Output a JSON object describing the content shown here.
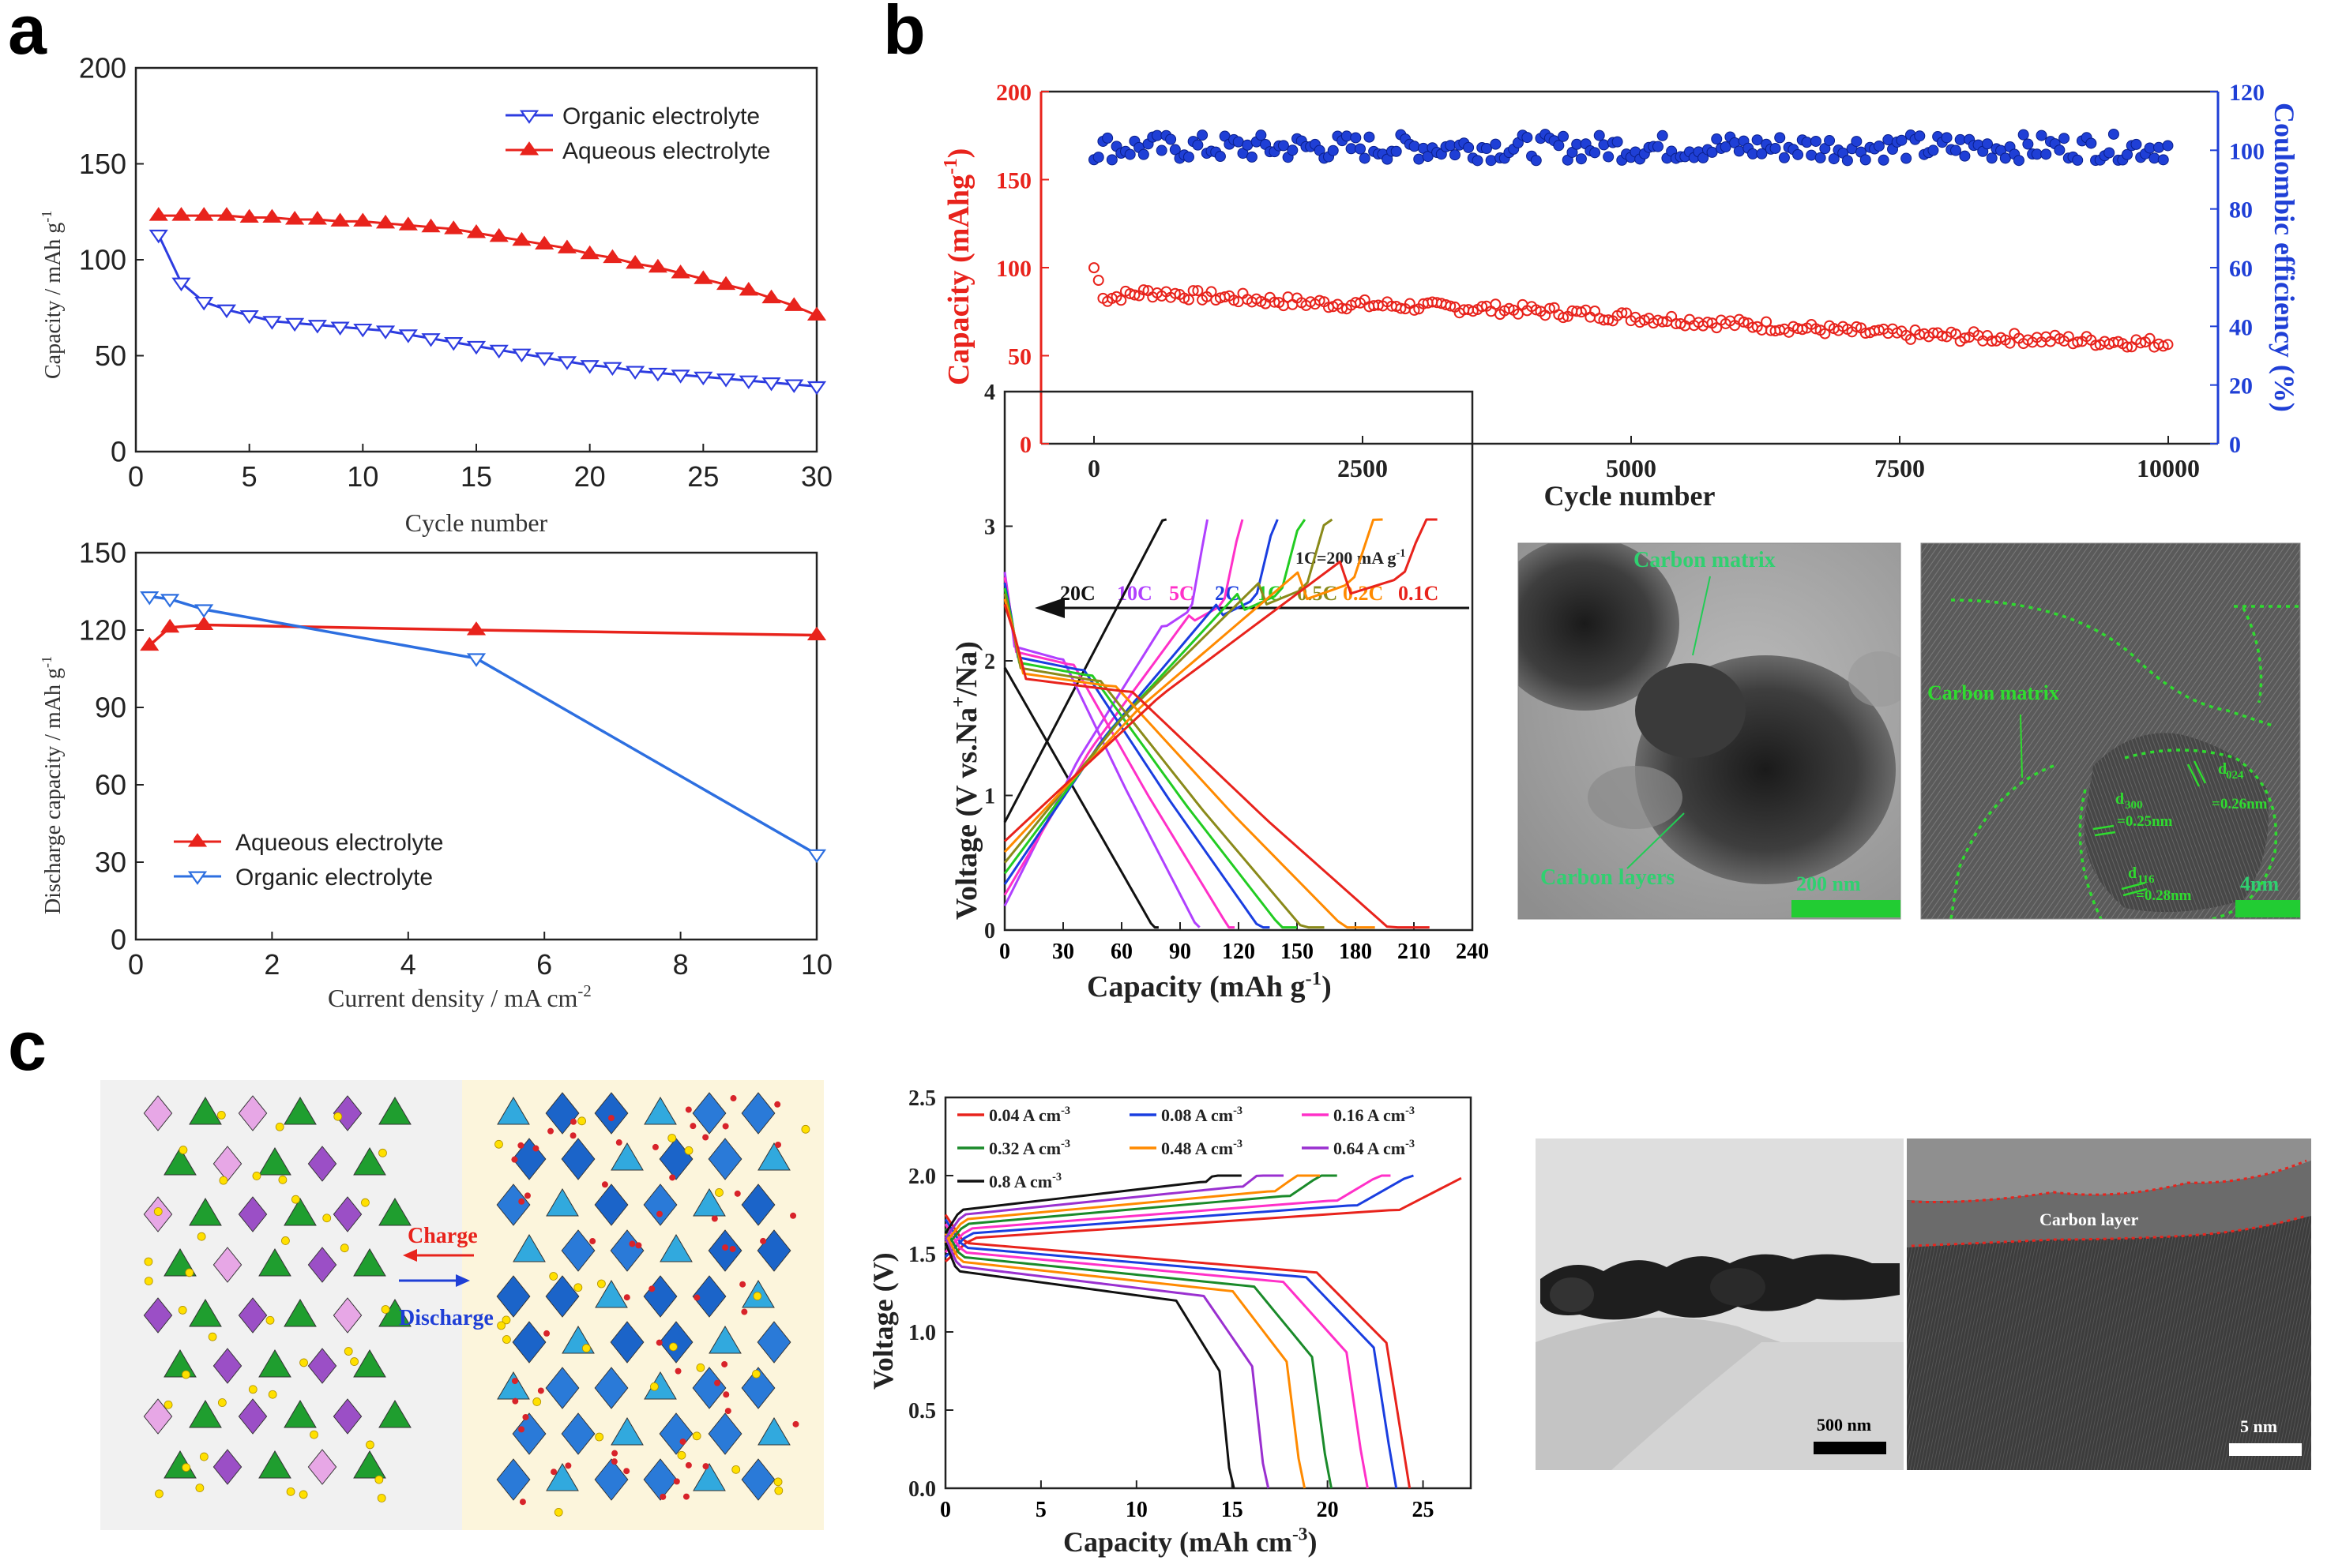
{
  "panel_labels": [
    "a",
    "b",
    "c"
  ],
  "colors": {
    "red": "#e8231c",
    "blue": "#1f3fd6",
    "lightblue": "#2f6fe0",
    "green": "#17c21f",
    "cyan_text": "#20c04a"
  },
  "micrographs": {
    "b1": {
      "labels": [
        "Carbon matrix",
        "Carbon layers"
      ],
      "scalebar": "200 nm"
    },
    "b2": {
      "labels": [
        "Carbon matrix",
        "d",
        "300",
        "=0.25nm",
        "d",
        "024",
        "=0.26nm",
        "d",
        "116",
        "=0.28nm"
      ],
      "scalebar": "4nm"
    },
    "c1": {
      "scalebar": "500 nm"
    },
    "c2": {
      "labels": [
        "Carbon layer"
      ],
      "scalebar": "5 nm"
    }
  },
  "schematic": {
    "charge_label": "Charge",
    "discharge_label": "Discharge"
  },
  "chart_data": [
    {
      "id": "a-top",
      "type": "line",
      "xlabel": "Cycle number",
      "ylabel": "Capacity / mAh g",
      "ylabel_sup": "-1",
      "xlim": [
        0,
        30
      ],
      "ylim": [
        0,
        200
      ],
      "xticks": [
        "0",
        "5",
        "10",
        "15",
        "20",
        "25",
        "30"
      ],
      "yticks": [
        "0",
        "50",
        "100",
        "150",
        "200"
      ],
      "legend_position": "top-right",
      "series": [
        {
          "name": "Organic electrolyte",
          "color": "#2d3ce0",
          "marker": "triangle-down-open",
          "x": [
            1,
            2,
            3,
            4,
            5,
            6,
            7,
            8,
            9,
            10,
            11,
            12,
            13,
            14,
            15,
            16,
            17,
            18,
            19,
            20,
            21,
            22,
            23,
            24,
            25,
            26,
            27,
            28,
            29,
            30
          ],
          "y": [
            113,
            88,
            78,
            74,
            71,
            68,
            67,
            66,
            65,
            64,
            63,
            61,
            59,
            57,
            55,
            53,
            51,
            49,
            47,
            45,
            44,
            42,
            41,
            40,
            39,
            38,
            37,
            36,
            35,
            34
          ]
        },
        {
          "name": "Aqueous electrolyte",
          "color": "#e8231c",
          "marker": "triangle-up-filled",
          "x": [
            1,
            2,
            3,
            4,
            5,
            6,
            7,
            8,
            9,
            10,
            11,
            12,
            13,
            14,
            15,
            16,
            17,
            18,
            19,
            20,
            21,
            22,
            23,
            24,
            25,
            26,
            27,
            28,
            29,
            30
          ],
          "y": [
            123,
            123,
            123,
            123,
            122,
            122,
            121,
            121,
            120,
            120,
            119,
            118,
            117,
            116,
            114,
            112,
            110,
            108,
            106,
            103,
            101,
            98,
            96,
            93,
            90,
            87,
            84,
            80,
            76,
            71
          ]
        }
      ]
    },
    {
      "id": "a-bottom",
      "type": "line",
      "xlabel": "Current density / mA cm",
      "xlabel_sup": "-2",
      "ylabel": "Discharge capacity / mAh g",
      "ylabel_sup": "-1",
      "xlim": [
        0,
        10
      ],
      "ylim": [
        0,
        150
      ],
      "xticks": [
        "0",
        "2",
        "4",
        "6",
        "8",
        "10"
      ],
      "yticks": [
        "0",
        "30",
        "60",
        "90",
        "120",
        "150"
      ],
      "legend_position": "bottom-left",
      "series": [
        {
          "name": "Aqueous electrolyte",
          "color": "#e8231c",
          "marker": "triangle-up-filled",
          "x": [
            0.2,
            0.5,
            1,
            5,
            10
          ],
          "y": [
            114,
            121,
            122,
            120,
            118
          ]
        },
        {
          "name": "Organic electrolyte",
          "color": "#2d6fe0",
          "marker": "triangle-down-open",
          "x": [
            0.2,
            0.5,
            1,
            5,
            10
          ],
          "y": [
            133,
            132,
            128,
            109,
            33
          ]
        }
      ]
    },
    {
      "id": "b-top",
      "type": "scatter",
      "xlabel": "Cycle number",
      "ylabel_left": "Capacity (mAhg",
      "ylabel_left_sup": "-1",
      "ylabel_right": "Coulombic efficiency (%)",
      "xlim": [
        0,
        10000
      ],
      "ylim_left": [
        0,
        200
      ],
      "ylim_right": [
        0,
        120
      ],
      "xticks": [
        "0",
        "2500",
        "5000",
        "7500",
        "10000"
      ],
      "yticks_left": [
        "0",
        "50",
        "100",
        "150",
        "200"
      ],
      "yticks_right": [
        "0",
        "20",
        "40",
        "60",
        "80",
        "100",
        "120"
      ],
      "series": [
        {
          "name": "Capacity",
          "axis": "left",
          "color": "#e8231c",
          "x": [
            0,
            100,
            250,
            500,
            1000,
            1500,
            2000,
            2500,
            3000,
            3500,
            4000,
            4500,
            5000,
            5500,
            6000,
            6500,
            7000,
            7500,
            8000,
            8500,
            9000,
            9500,
            10000
          ],
          "y": [
            100,
            82,
            84,
            86,
            84,
            82,
            80,
            79,
            78,
            77,
            76,
            74,
            72,
            70,
            68,
            66,
            64,
            62,
            61,
            60,
            59,
            58,
            57
          ]
        },
        {
          "name": "Coulombic efficiency",
          "axis": "right",
          "color": "#1f3fd6",
          "x": [
            0,
            2500,
            5000,
            7500,
            10000
          ],
          "y": [
            101,
            101,
            101,
            101,
            101
          ]
        }
      ]
    },
    {
      "id": "b-mid",
      "type": "line",
      "xlabel": "Capacity (mAh g",
      "xlabel_sup": "-1",
      "ylabel": "Voltage (V vs.Na",
      "ylabel_sup": "+",
      "ylabel_end": "/Na)",
      "xlim": [
        0,
        240
      ],
      "ylim": [
        0,
        4
      ],
      "xticks": [
        "0",
        "30",
        "60",
        "90",
        "120",
        "150",
        "180",
        "210",
        "240"
      ],
      "yticks": [
        "0",
        "1",
        "2",
        "3",
        "4"
      ],
      "note": "1C=200 mA g",
      "note_sup": "-1",
      "rates": [
        {
          "label": "20C",
          "color": "#111111",
          "capacity": 79
        },
        {
          "label": "10C",
          "color": "#b040ff",
          "capacity": 100
        },
        {
          "label": "5C",
          "color": "#ff30c8",
          "capacity": 118
        },
        {
          "label": "2C",
          "color": "#1a3ee0",
          "capacity": 136
        },
        {
          "label": "1C",
          "color": "#22cc22",
          "capacity": 150
        },
        {
          "label": "0.5C",
          "color": "#8a8a1a",
          "capacity": 164
        },
        {
          "label": "0.2C",
          "color": "#ff8a00",
          "capacity": 190
        },
        {
          "label": "0.1C",
          "color": "#e8231c",
          "capacity": 218
        }
      ]
    },
    {
      "id": "c-mid",
      "type": "line",
      "xlabel": "Capacity (mAh cm",
      "xlabel_sup": "-3",
      "xlabel_end": ")",
      "ylabel": "Voltage (V)",
      "xlim": [
        0,
        27.5
      ],
      "ylim": [
        0,
        2.5
      ],
      "xticks": [
        "0",
        "5",
        "10",
        "15",
        "20",
        "25"
      ],
      "yticks": [
        "0.0",
        "0.5",
        "1.0",
        "1.5",
        "2.0",
        "2.5"
      ],
      "legend": [
        {
          "label": "0.04 A cm",
          "sup": "-3",
          "color": "#e8231c",
          "charge_cap": 27,
          "discharge_cap": 24.3
        },
        {
          "label": "0.08 A cm",
          "sup": "-3",
          "color": "#1a3ee0",
          "charge_cap": 24.5,
          "discharge_cap": 23.6
        },
        {
          "label": "0.16 A cm",
          "sup": "-3",
          "color": "#ff30c8",
          "charge_cap": 23.3,
          "discharge_cap": 22.1
        },
        {
          "label": "0.32 A cm",
          "sup": "-3",
          "color": "#1a8a2a",
          "charge_cap": 20.5,
          "discharge_cap": 20.2
        },
        {
          "label": "0.48 A cm",
          "sup": "-3",
          "color": "#ff8a00",
          "charge_cap": 19.6,
          "discharge_cap": 18.8
        },
        {
          "label": "0.64 A cm",
          "sup": "-3",
          "color": "#9a30d0",
          "charge_cap": 17.7,
          "discharge_cap": 16.9
        },
        {
          "label": "0.8 A cm",
          "sup": "-3",
          "color": "#111111",
          "charge_cap": 15.5,
          "discharge_cap": 15.1
        }
      ]
    }
  ]
}
